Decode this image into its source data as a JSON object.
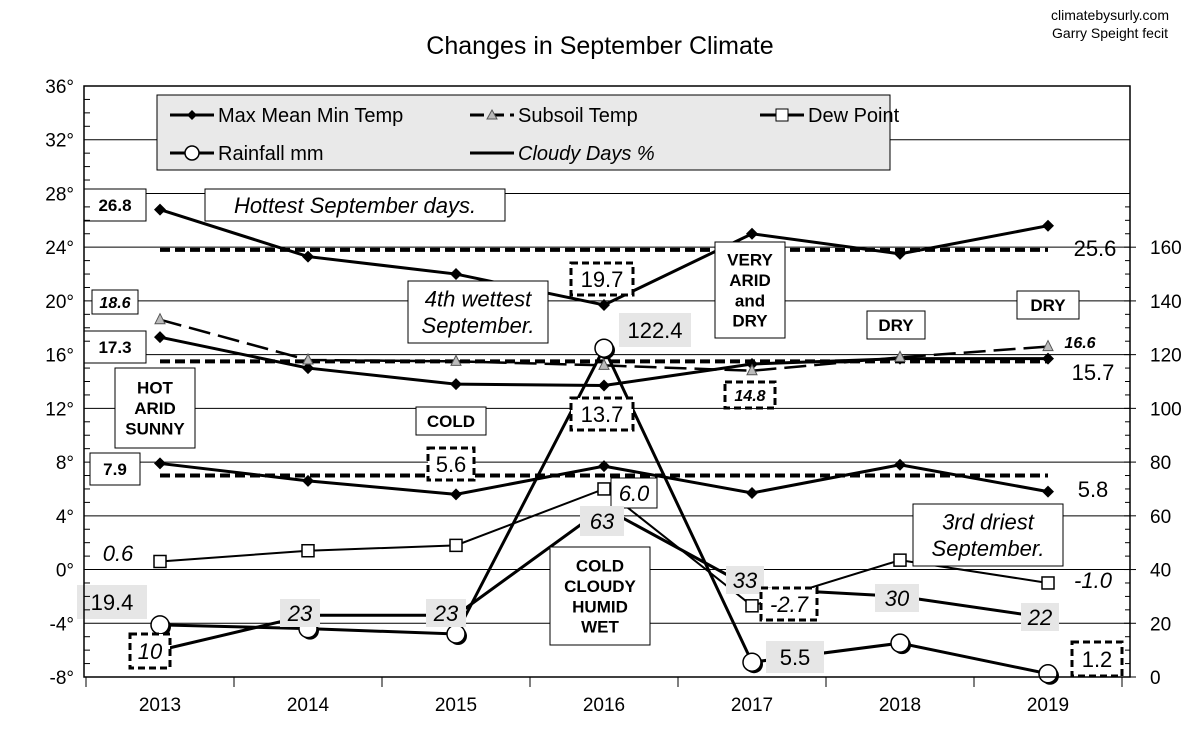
{
  "credits": [
    "climatebysurly.com",
    "Garry Speight fecit"
  ],
  "chart_data": {
    "type": "line",
    "title": "Changes in September Climate",
    "categories": [
      "2013",
      "2014",
      "2015",
      "2016",
      "2017",
      "2018",
      "2019"
    ],
    "left_axis": {
      "range": [
        -8,
        36
      ],
      "ticks": [
        "-8°",
        "-4°",
        "0°",
        "4°",
        "8°",
        "12°",
        "16°",
        "20°",
        "24°",
        "28°",
        "32°",
        "36°"
      ]
    },
    "right_axis": {
      "range": [
        0,
        220
      ],
      "ticks": [
        "0",
        "20",
        "40",
        "60",
        "80",
        "100",
        "120",
        "140",
        "160"
      ]
    },
    "grid": true,
    "legend": {
      "placement": "top",
      "entries": [
        "Max Mean Min Temp",
        "Subsoil Temp",
        "Dew Point",
        "Rainfall mm",
        "Cloudy Days %"
      ]
    },
    "series": [
      {
        "name": "Max Mean Min Temp",
        "part": "max",
        "axis": "left",
        "values": [
          26.8,
          23.3,
          22.0,
          19.7,
          25.0,
          23.5,
          25.6
        ]
      },
      {
        "name": "Max Mean Min Temp",
        "part": "mean",
        "axis": "left",
        "values": [
          17.3,
          15.0,
          13.8,
          13.7,
          15.3,
          15.7,
          15.7
        ]
      },
      {
        "name": "Max Mean Min Temp",
        "part": "min",
        "axis": "left",
        "values": [
          7.9,
          6.6,
          5.6,
          7.7,
          5.7,
          7.8,
          5.8
        ]
      },
      {
        "name": "Subsoil Temp",
        "axis": "left",
        "values": [
          18.6,
          15.6,
          15.5,
          15.2,
          14.8,
          15.8,
          16.6
        ]
      },
      {
        "name": "Dew Point",
        "axis": "left",
        "values": [
          0.6,
          1.4,
          1.8,
          6.0,
          -2.7,
          0.7,
          -1.0
        ]
      },
      {
        "name": "Rainfall mm",
        "axis": "right",
        "values": [
          19.4,
          18.0,
          16.0,
          122.4,
          5.5,
          12.6,
          1.2
        ]
      },
      {
        "name": "Cloudy Days %",
        "axis": "right",
        "values": [
          10,
          23,
          23,
          63,
          33,
          30,
          22
        ]
      }
    ],
    "reference_lines": [
      {
        "axis": "left",
        "value": 23.8
      },
      {
        "axis": "left",
        "value": 15.5
      },
      {
        "axis": "left",
        "value": 7.0
      }
    ],
    "annotations": [
      "26.8",
      "Hottest September days.",
      "17.3",
      "7.9",
      "18.6",
      "HOT\nARID\nSUNNY",
      "COLD",
      "5.6",
      "19.7",
      "4th wettest\nSeptember.",
      "122.4",
      "13.7",
      "VERY\nARID\nand\nDRY",
      "DRY",
      "DRY",
      "25.6",
      "16.6",
      "15.7",
      "14.8",
      "5.8",
      "0.6",
      "6.0",
      "63",
      "COLD\nCLOUDY\nHUMID\nWET",
      "33",
      "-2.7",
      "30",
      "22",
      "-1.0",
      "3rd driest\nSeptember.",
      "19.4",
      "23",
      "23",
      "10",
      "5.5",
      "1.2"
    ]
  }
}
